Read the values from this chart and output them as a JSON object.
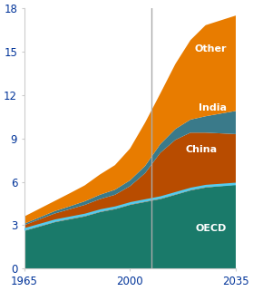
{
  "title": "",
  "x_start": 1965,
  "x_end": 2035,
  "x_ticks": [
    1965,
    2000,
    2035
  ],
  "y_ticks": [
    0,
    3,
    6,
    9,
    12,
    15,
    18
  ],
  "ylim": [
    0,
    18
  ],
  "vline_x": 2007,
  "vline_color": "#aaaaaa",
  "colors": {
    "OECD": "#1a7a6a",
    "China": "#b84c00",
    "India": "#3a7a8a",
    "Other": "#e87c00"
  },
  "label_color": "white",
  "tick_label_color": "#003399",
  "background_color": "#ffffff",
  "line_color": "#55ccee",
  "line_width": 2.0,
  "oecd_years": [
    1965,
    1970,
    1975,
    1980,
    1985,
    1990,
    1995,
    2000,
    2005,
    2010,
    2015,
    2020,
    2025,
    2035
  ],
  "oecd_vals": [
    2.6,
    2.9,
    3.2,
    3.4,
    3.6,
    3.9,
    4.1,
    4.4,
    4.6,
    4.8,
    5.1,
    5.4,
    5.6,
    5.8
  ],
  "china_years": [
    1965,
    1970,
    1975,
    1980,
    1985,
    1990,
    1995,
    2000,
    2005,
    2010,
    2015,
    2020,
    2025,
    2035
  ],
  "china_vals": [
    0.4,
    0.5,
    0.6,
    0.7,
    0.8,
    0.9,
    1.0,
    1.3,
    2.0,
    3.2,
    3.8,
    4.0,
    3.8,
    3.5
  ],
  "india_years": [
    1965,
    1980,
    1990,
    2000,
    2010,
    2020,
    2035
  ],
  "india_vals": [
    0.1,
    0.2,
    0.3,
    0.4,
    0.6,
    0.9,
    1.6
  ],
  "other_years": [
    1965,
    1970,
    1975,
    1980,
    1985,
    1990,
    1995,
    2000,
    2005,
    2010,
    2015,
    2020,
    2025,
    2035
  ],
  "other_vals": [
    0.5,
    0.6,
    0.7,
    0.9,
    1.1,
    1.4,
    1.7,
    2.2,
    3.0,
    3.5,
    4.5,
    5.5,
    6.3,
    6.6
  ],
  "line_years": [
    1965,
    1970,
    1975,
    1980,
    1985,
    1990,
    1995,
    2000,
    2005,
    2010,
    2015,
    2020,
    2025,
    2035
  ],
  "line_vals": [
    2.7,
    3.0,
    3.3,
    3.5,
    3.7,
    4.0,
    4.2,
    4.5,
    4.7,
    4.9,
    5.2,
    5.5,
    5.7,
    5.85
  ]
}
